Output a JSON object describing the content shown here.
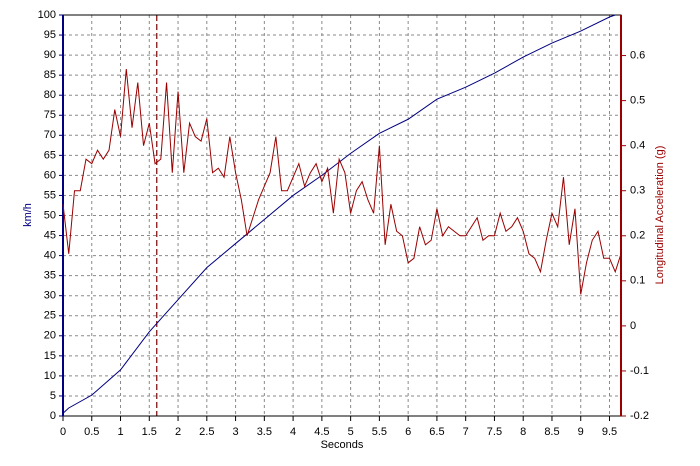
{
  "chart_data": {
    "type": "line",
    "x_label": "Seconds",
    "y_label": "km/h",
    "y2_label": "Longitudinal Acceleration (g)",
    "xlim": [
      0,
      9.7
    ],
    "xticks": [
      0,
      0.5,
      1,
      1.5,
      2,
      2.5,
      3,
      3.5,
      4,
      4.5,
      5,
      5.5,
      6,
      6.5,
      7,
      7.5,
      8,
      8.5,
      9,
      9.5
    ],
    "ylim": [
      0,
      100
    ],
    "yticks": [
      0,
      5,
      10,
      15,
      20,
      25,
      30,
      35,
      40,
      45,
      50,
      55,
      60,
      65,
      70,
      75,
      80,
      85,
      90,
      95,
      100
    ],
    "y2lim": [
      -0.2,
      0.69
    ],
    "y2ticks": [
      -0.2,
      -0.1,
      0,
      0.1,
      0.2,
      0.3,
      0.4,
      0.5,
      0.6
    ],
    "grid": true,
    "cursor": 1.63,
    "series": [
      {
        "color": "#000080",
        "x": [
          0,
          0.1,
          0.5,
          1,
          1.5,
          2,
          2.5,
          3,
          3.5,
          4,
          4.5,
          5,
          5.5,
          6,
          6.5,
          7,
          7.5,
          8,
          8.5,
          9,
          9.5,
          9.6
        ],
        "values": [
          0.7,
          2,
          5.2,
          11.5,
          21,
          29,
          37,
          43,
          49,
          55,
          60,
          65.5,
          70.5,
          74,
          79,
          82,
          85.5,
          89.5,
          93,
          96,
          99.5,
          100
        ]
      },
      {
        "color": "#9b0000",
        "axis": "y2",
        "x": [
          0,
          0.1,
          0.2,
          0.3,
          0.4,
          0.5,
          0.6,
          0.7,
          0.8,
          0.9,
          1,
          1.1,
          1.2,
          1.3,
          1.4,
          1.5,
          1.6,
          1.7,
          1.8,
          1.9,
          2,
          2.1,
          2.2,
          2.3,
          2.4,
          2.5,
          2.6,
          2.7,
          2.8,
          2.9,
          3,
          3.1,
          3.2,
          3.3,
          3.4,
          3.5,
          3.6,
          3.7,
          3.8,
          3.9,
          4,
          4.1,
          4.2,
          4.3,
          4.4,
          4.5,
          4.6,
          4.7,
          4.8,
          4.9,
          5,
          5.1,
          5.2,
          5.3,
          5.4,
          5.5,
          5.6,
          5.7,
          5.8,
          5.9,
          6,
          6.1,
          6.2,
          6.3,
          6.4,
          6.5,
          6.6,
          6.7,
          6.8,
          6.9,
          7,
          7.1,
          7.2,
          7.3,
          7.4,
          7.5,
          7.6,
          7.7,
          7.8,
          7.9,
          8,
          8.1,
          8.2,
          8.3,
          8.4,
          8.5,
          8.6,
          8.7,
          8.8,
          8.9,
          9,
          9.1,
          9.2,
          9.3,
          9.4,
          9.5,
          9.6,
          9.7
        ],
        "values": [
          0.27,
          0.16,
          0.3,
          0.3,
          0.37,
          0.36,
          0.39,
          0.37,
          0.39,
          0.48,
          0.42,
          0.57,
          0.44,
          0.54,
          0.4,
          0.45,
          0.36,
          0.37,
          0.54,
          0.34,
          0.52,
          0.34,
          0.45,
          0.42,
          0.41,
          0.46,
          0.34,
          0.35,
          0.33,
          0.42,
          0.34,
          0.28,
          0.2,
          0.24,
          0.28,
          0.31,
          0.34,
          0.42,
          0.3,
          0.3,
          0.33,
          0.36,
          0.31,
          0.34,
          0.36,
          0.32,
          0.35,
          0.25,
          0.37,
          0.34,
          0.25,
          0.3,
          0.32,
          0.28,
          0.25,
          0.4,
          0.18,
          0.27,
          0.21,
          0.2,
          0.14,
          0.15,
          0.22,
          0.18,
          0.19,
          0.26,
          0.2,
          0.22,
          0.21,
          0.2,
          0.2,
          0.22,
          0.24,
          0.19,
          0.2,
          0.2,
          0.25,
          0.21,
          0.22,
          0.24,
          0.21,
          0.16,
          0.15,
          0.12,
          0.19,
          0.25,
          0.22,
          0.33,
          0.18,
          0.26,
          0.07,
          0.14,
          0.19,
          0.21,
          0.15,
          0.15,
          0.12,
          0.16
        ]
      }
    ]
  }
}
